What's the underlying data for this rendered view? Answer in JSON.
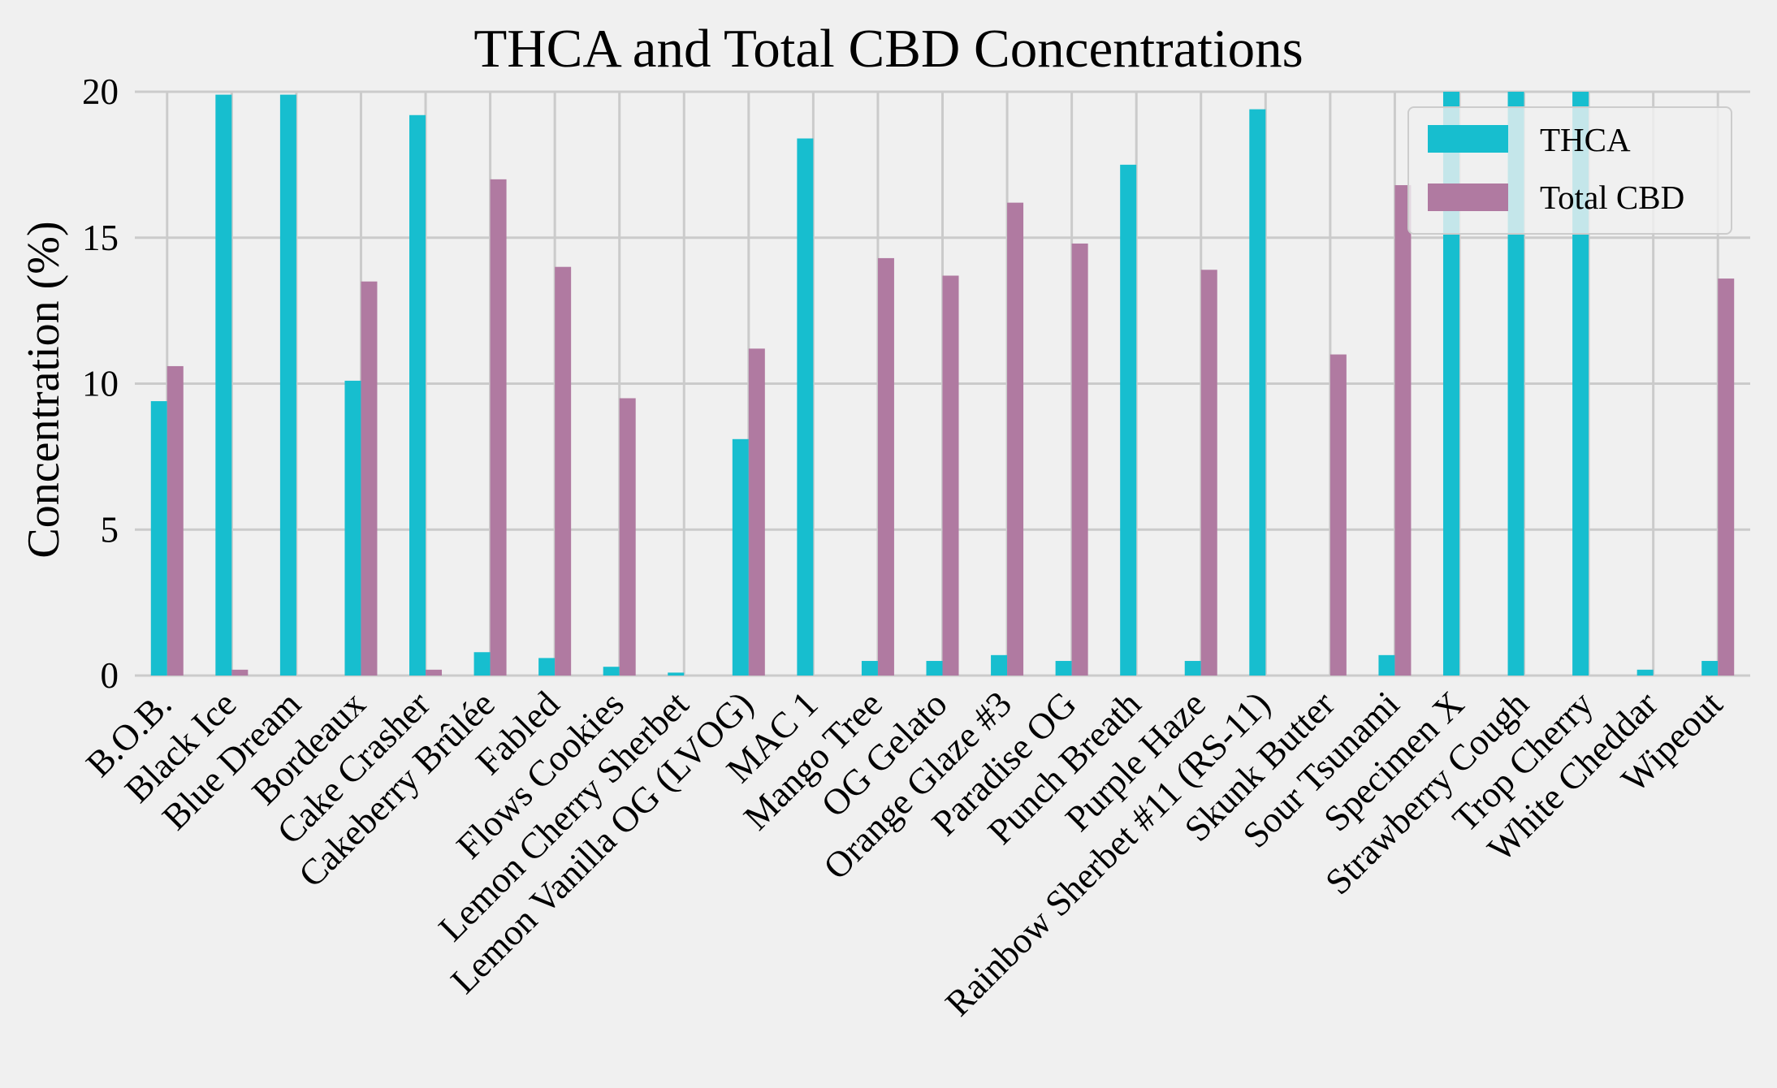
{
  "chart_data": {
    "type": "bar",
    "title": "THCA and Total CBD Concentrations",
    "xlabel": "",
    "ylabel": "Concentration (%)",
    "ylim": [
      0,
      20
    ],
    "yticks": [
      "0",
      "5",
      "10",
      "15",
      "20"
    ],
    "grid": true,
    "legend_position": "top-right",
    "categories": [
      "B.O.B.",
      "Black Ice",
      "Blue Dream",
      "Bordeaux",
      "Cake Crasher",
      "Cakeberry Brûlée",
      "Fabled",
      "Flows Cookies",
      "Lemon Cherry Sherbet",
      "Lemon Vanilla OG (LVOG)",
      "MAC 1",
      "Mango Tree",
      "OG Gelato",
      "Orange Glaze #3",
      "Paradise OG",
      "Punch Breath",
      "Purple Haze",
      "Rainbow Sherbet #11 (RS-11)",
      "Skunk Butter",
      "Sour Tsunami",
      "Specimen X",
      "Strawberry Cough",
      "Trop Cherry",
      "White Cheddar",
      "Wipeout"
    ],
    "series": [
      {
        "name": "THCA",
        "color": "#17becf",
        "values": [
          9.4,
          19.9,
          19.9,
          10.1,
          19.2,
          0.8,
          0.6,
          0.3,
          0.1,
          8.1,
          18.4,
          0.5,
          0.5,
          0.7,
          0.5,
          17.5,
          0.5,
          19.4,
          0.0,
          0.7,
          20.0,
          20.0,
          20.0,
          0.2,
          0.5
        ]
      },
      {
        "name": "Total CBD",
        "color": "#b07aa1",
        "values": [
          10.6,
          0.2,
          0.0,
          13.5,
          0.2,
          17.0,
          14.0,
          9.5,
          0.0,
          11.2,
          0.0,
          14.3,
          13.7,
          16.2,
          14.8,
          0.0,
          13.9,
          0.0,
          11.0,
          16.8,
          0.0,
          0.0,
          0.0,
          0.0,
          13.6
        ]
      }
    ]
  }
}
